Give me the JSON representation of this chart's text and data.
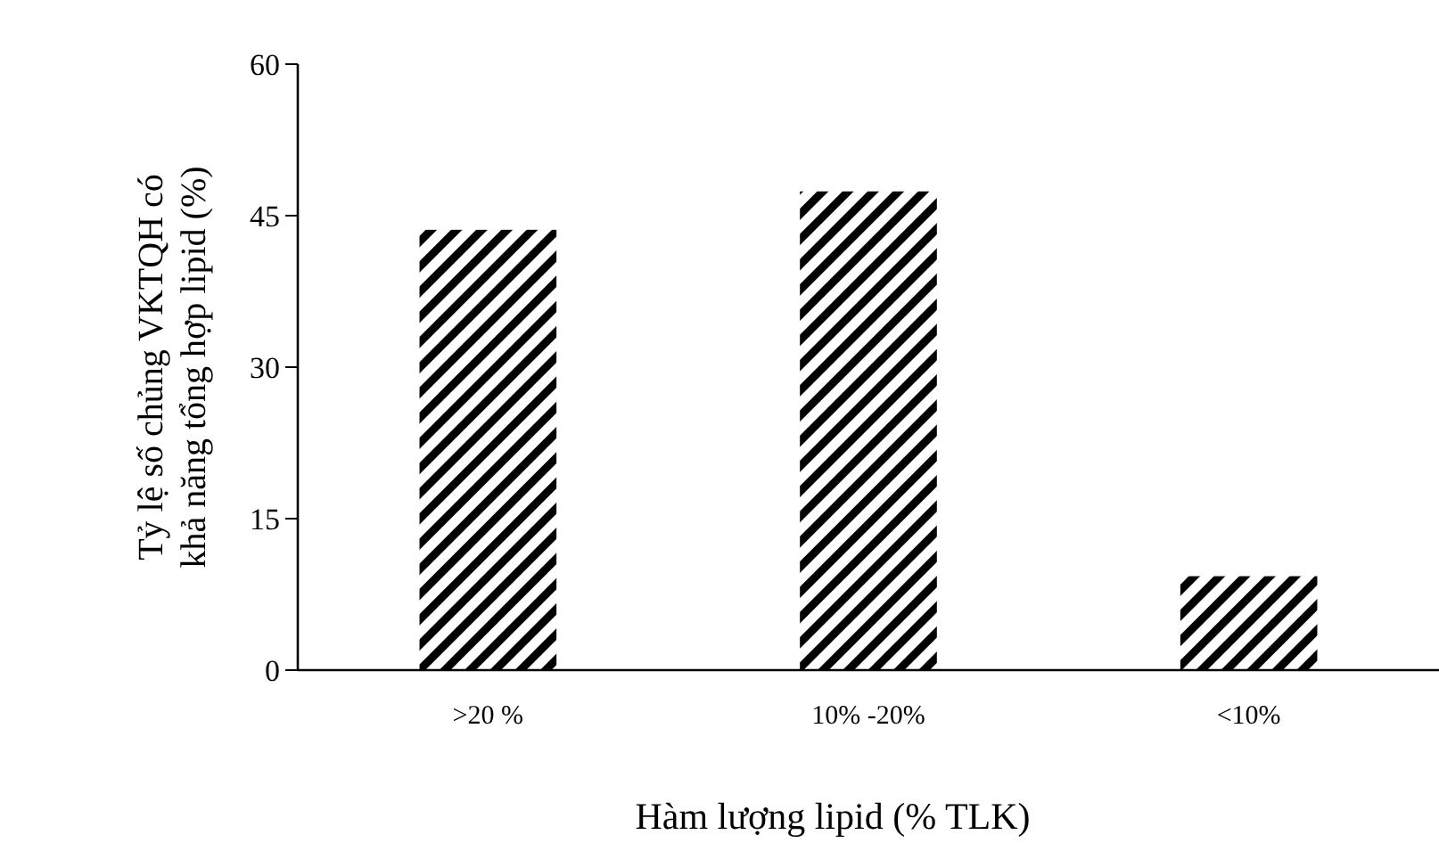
{
  "chart_data": {
    "type": "bar",
    "xlabel": "Hàm lượng lipid (% TLK)",
    "ylabel": "Tỷ lệ số chủng VKTQH có\nkhả năng tổng hợp lipid  (%)",
    "categories": [
      ">20 %",
      "10% -20%",
      "<10%"
    ],
    "series": [
      {
        "color": "#000000",
        "values": [
          43.6,
          47.4,
          9.3
        ]
      }
    ],
    "ylim": [
      0,
      60
    ],
    "yticks": [
      0,
      15,
      30,
      45,
      60
    ],
    "grid": false
  }
}
